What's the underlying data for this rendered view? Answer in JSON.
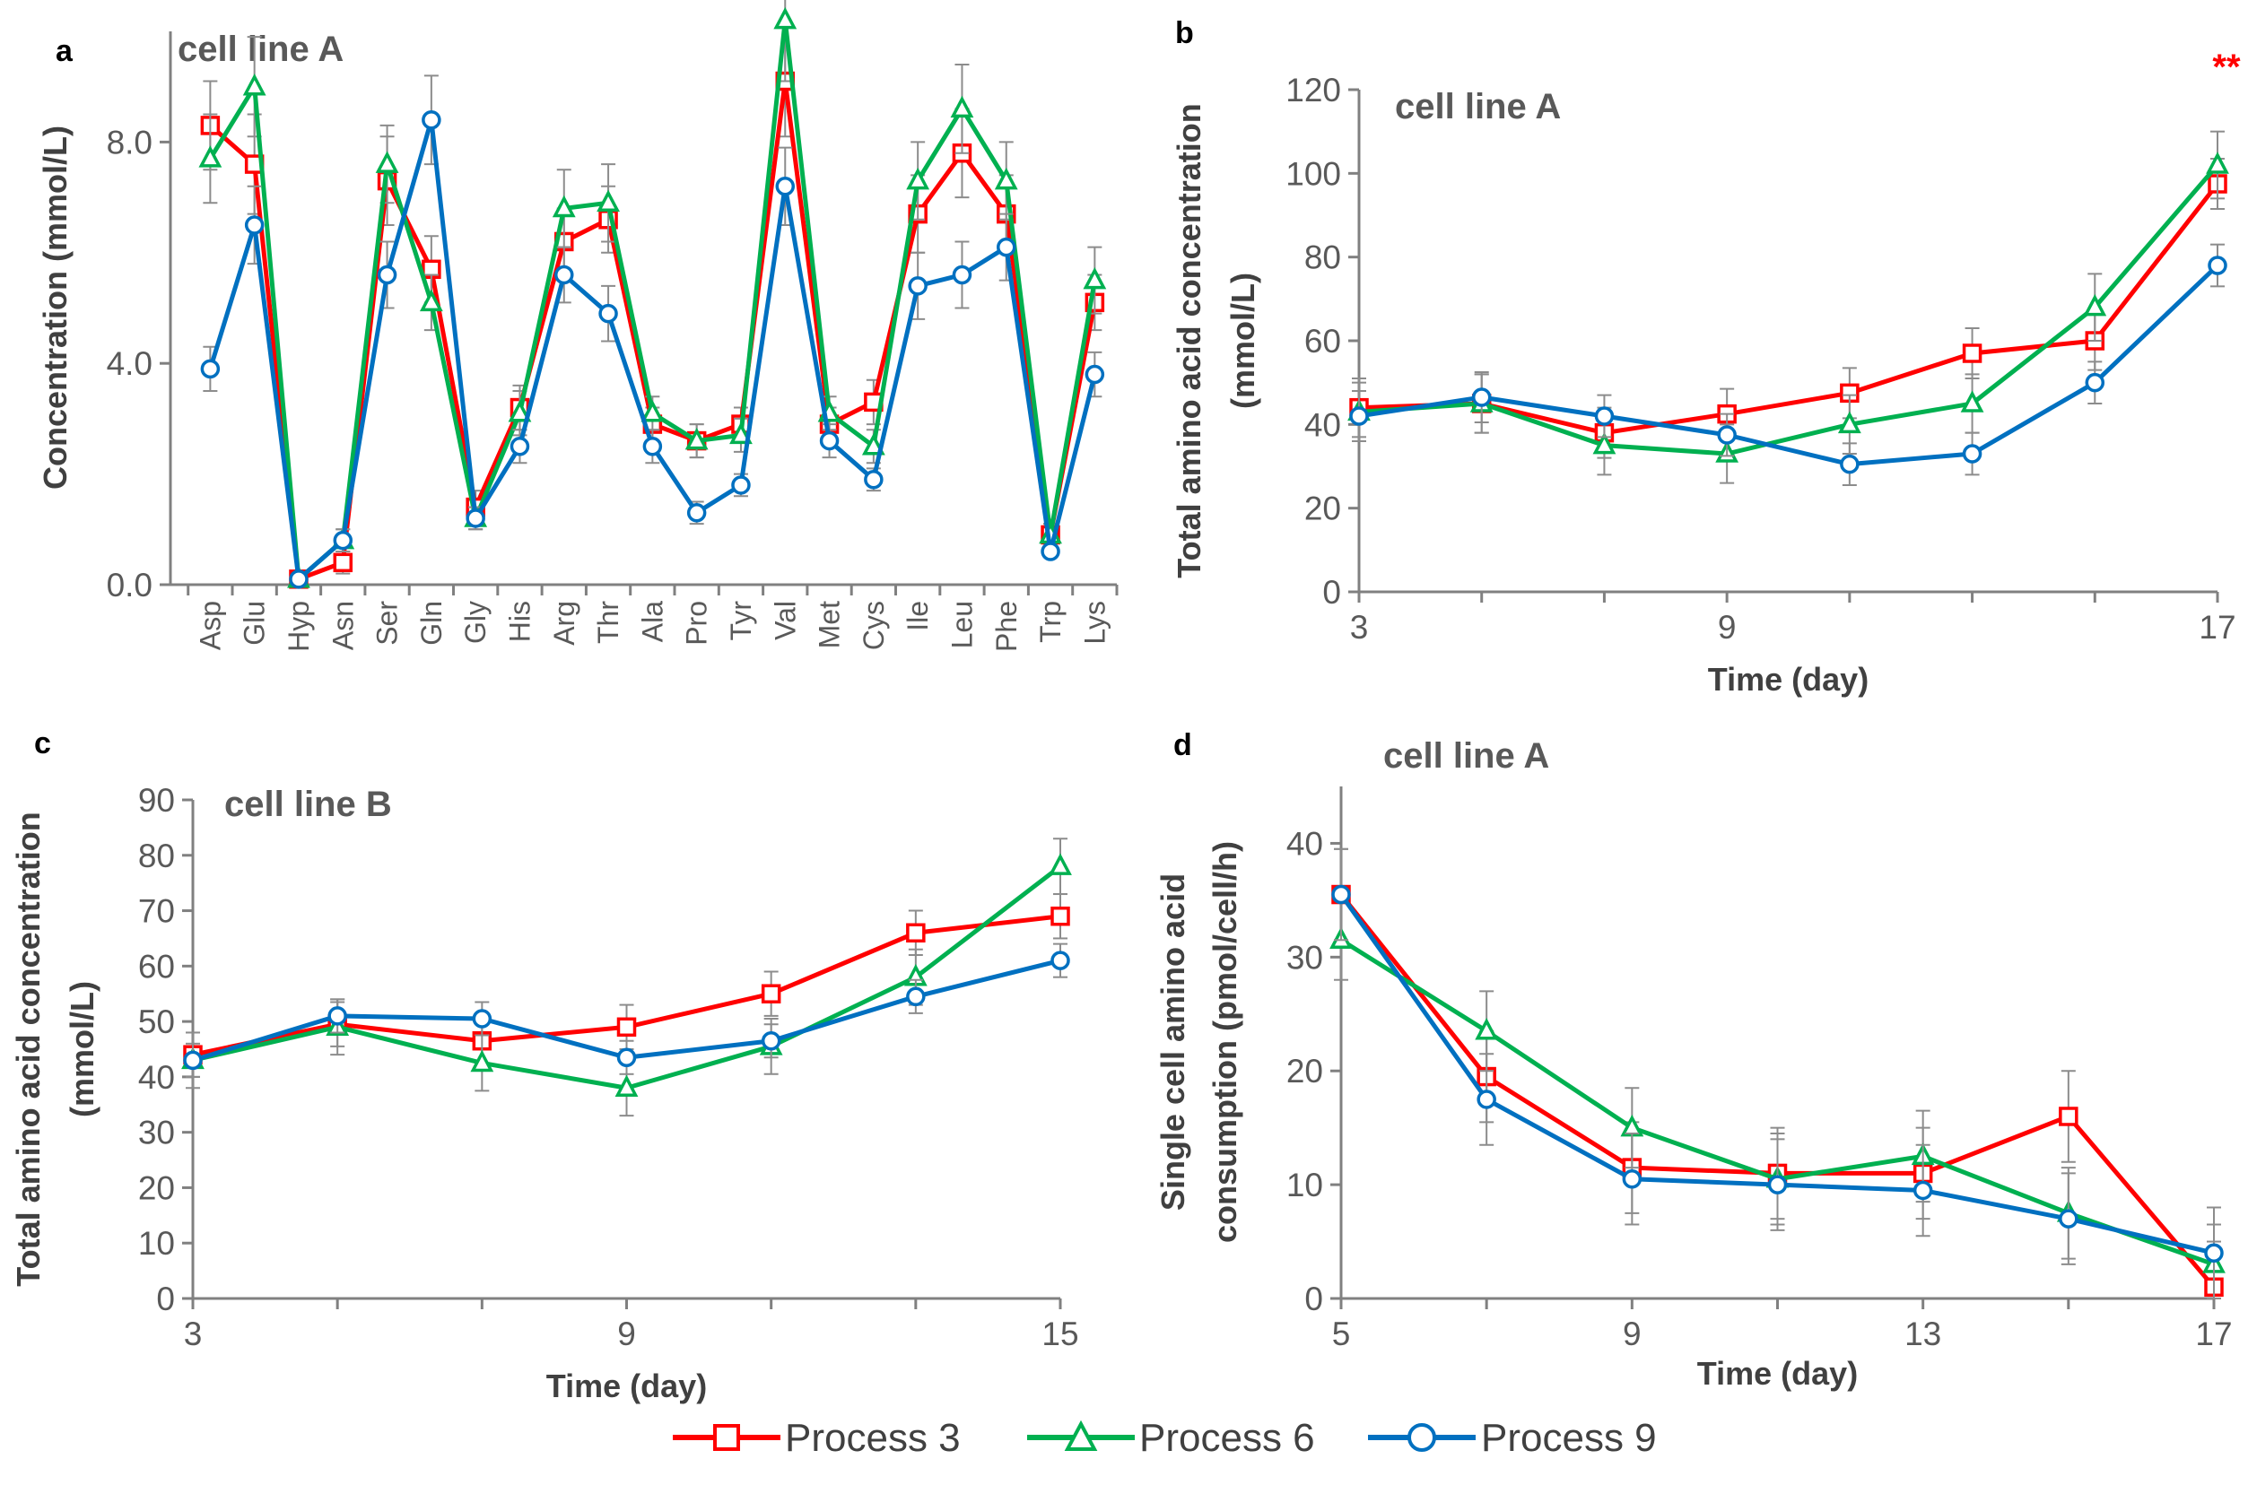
{
  "series_meta": [
    {
      "name": "Process 3",
      "color": "#ff0000",
      "marker": "square"
    },
    {
      "name": "Process 6",
      "color": "#00b050",
      "marker": "triangle"
    },
    {
      "name": "Process 9",
      "color": "#0070c0",
      "marker": "circle"
    }
  ],
  "legend": {
    "items": [
      "Process 3",
      "Process 6",
      "Process 9"
    ]
  },
  "chart_data": [
    {
      "panel": "a",
      "type": "line",
      "title": "cell line A",
      "xlabel": "",
      "ylabel": "Concentration (mmol/L)",
      "ylim": [
        0,
        10
      ],
      "yticks": [
        0,
        4,
        8
      ],
      "ytick_labels": [
        "0.0",
        "4.0",
        "8.0"
      ],
      "categories": [
        "Asp",
        "Glu",
        "Hyp",
        "Asn",
        "Ser",
        "Gln",
        "Gly",
        "His",
        "Arg",
        "Thr",
        "Ala",
        "Pro",
        "Tyr",
        "Val",
        "Met",
        "Cys",
        "Ile",
        "Leu",
        "Phe",
        "Trp",
        "Lys"
      ],
      "series": [
        {
          "name": "Process 3",
          "values": [
            8.3,
            7.6,
            0.1,
            0.4,
            7.3,
            5.7,
            1.4,
            3.2,
            6.2,
            6.6,
            2.9,
            2.6,
            2.9,
            9.1,
            2.9,
            3.3,
            6.7,
            7.8,
            6.7,
            0.9,
            5.1
          ],
          "err": [
            0.8,
            0.9,
            0.1,
            0.2,
            0.8,
            0.6,
            0.3,
            0.4,
            0.6,
            0.6,
            0.3,
            0.3,
            0.3,
            1.0,
            0.3,
            0.4,
            0.7,
            0.8,
            0.7,
            0.2,
            0.5
          ]
        },
        {
          "name": "Process 6",
          "values": [
            7.7,
            9.0,
            0.1,
            0.8,
            7.6,
            5.1,
            1.2,
            3.1,
            6.8,
            6.9,
            3.1,
            2.6,
            2.7,
            10.2,
            3.1,
            2.5,
            7.3,
            8.6,
            7.3,
            0.9,
            5.5
          ],
          "err": [
            0.8,
            0.9,
            0.1,
            0.2,
            0.7,
            0.5,
            0.2,
            0.4,
            0.7,
            0.7,
            0.3,
            0.3,
            0.3,
            1.1,
            0.3,
            0.3,
            0.7,
            0.8,
            0.7,
            0.2,
            0.6
          ]
        },
        {
          "name": "Process 9",
          "values": [
            3.9,
            6.5,
            0.1,
            0.8,
            5.6,
            8.4,
            1.2,
            2.5,
            5.6,
            4.9,
            2.5,
            1.3,
            1.8,
            7.2,
            2.6,
            1.9,
            5.4,
            5.6,
            6.1,
            0.6,
            3.8
          ],
          "err": [
            0.4,
            0.7,
            0.1,
            0.2,
            0.6,
            0.8,
            0.2,
            0.3,
            0.5,
            0.5,
            0.3,
            0.2,
            0.2,
            0.7,
            0.3,
            0.2,
            0.6,
            0.6,
            0.6,
            0.1,
            0.4
          ]
        }
      ]
    },
    {
      "panel": "b",
      "type": "line",
      "title": "cell line A",
      "xlabel": "Time (day)",
      "ylabel": "Total amino acid concentration (mmol/L)",
      "ylabel_lines": [
        "Total amino acid concentration",
        "(mmol/L)"
      ],
      "ylim": [
        0,
        120
      ],
      "yticks": [
        0,
        20,
        40,
        60,
        80,
        100,
        120
      ],
      "xlim": [
        3,
        17
      ],
      "xticks": [
        3,
        9,
        17
      ],
      "x": [
        3,
        5,
        7,
        9,
        11,
        13,
        15,
        17
      ],
      "annotation": "**",
      "series": [
        {
          "name": "Process 3",
          "values": [
            44,
            45,
            38,
            42.5,
            47.5,
            57,
            60,
            97.5
          ],
          "err": [
            7,
            7,
            6,
            6,
            6,
            6,
            7,
            6
          ]
        },
        {
          "name": "Process 6",
          "values": [
            43,
            45,
            35,
            33,
            40,
            45,
            68,
            102
          ],
          "err": [
            7,
            7,
            7,
            7,
            7,
            7,
            8,
            8
          ]
        },
        {
          "name": "Process 9",
          "values": [
            42,
            46.5,
            42,
            37.5,
            30.5,
            33,
            50,
            78
          ],
          "err": [
            6,
            6,
            5,
            5,
            5,
            5,
            5,
            5
          ]
        }
      ]
    },
    {
      "panel": "c",
      "type": "line",
      "title": "cell line B",
      "xlabel": "Time (day)",
      "ylabel": "Total amino acid concentration (mmol/L)",
      "ylabel_lines": [
        "Total amino acid concentration",
        "(mmol/L)"
      ],
      "ylim": [
        0,
        90
      ],
      "yticks": [
        0,
        10,
        20,
        30,
        40,
        50,
        60,
        70,
        80,
        90
      ],
      "xlim": [
        3,
        15
      ],
      "xticks": [
        3,
        9,
        15
      ],
      "x": [
        3,
        5,
        7,
        9,
        11,
        13,
        15
      ],
      "series": [
        {
          "name": "Process 3",
          "values": [
            44,
            49.5,
            46.5,
            49,
            55,
            66,
            69
          ],
          "err": [
            4,
            4,
            4,
            4,
            4,
            4,
            4
          ]
        },
        {
          "name": "Process 6",
          "values": [
            43,
            49,
            42.5,
            38,
            45.5,
            58,
            78
          ],
          "err": [
            5,
            5,
            5,
            5,
            5,
            5,
            5
          ]
        },
        {
          "name": "Process 9",
          "values": [
            43,
            51,
            50.5,
            43.5,
            46.5,
            54.5,
            61
          ],
          "err": [
            3,
            3,
            3,
            3,
            3,
            3,
            3
          ]
        }
      ]
    },
    {
      "panel": "d",
      "type": "line",
      "title": "cell line A",
      "xlabel": "Time (day)",
      "ylabel": "Single cell amino acid consumption (pmol/cell/h)",
      "ylabel_lines": [
        "Single cell amino acid",
        "consumption (pmol/cell/h)"
      ],
      "ylim": [
        0,
        45
      ],
      "yticks": [
        0,
        10,
        20,
        30,
        40
      ],
      "xlim": [
        5,
        17
      ],
      "xticks": [
        5,
        9,
        13,
        17
      ],
      "x": [
        5,
        7,
        9,
        11,
        13,
        15,
        17
      ],
      "series": [
        {
          "name": "Process 3",
          "values": [
            35.5,
            19.5,
            11.5,
            11,
            11,
            16,
            1
          ],
          "err": [
            4,
            4,
            4,
            4,
            4,
            4,
            4
          ]
        },
        {
          "name": "Process 6",
          "values": [
            31.5,
            23.5,
            15,
            10.5,
            12.5,
            7.5,
            3
          ],
          "err": [
            3.5,
            3.5,
            3.5,
            4,
            4,
            4,
            3.5
          ]
        },
        {
          "name": "Process 9",
          "values": [
            35.5,
            17.5,
            10.5,
            10,
            9.5,
            7,
            4
          ],
          "err": [
            4,
            4,
            4,
            4,
            4,
            4,
            4
          ]
        }
      ]
    }
  ]
}
